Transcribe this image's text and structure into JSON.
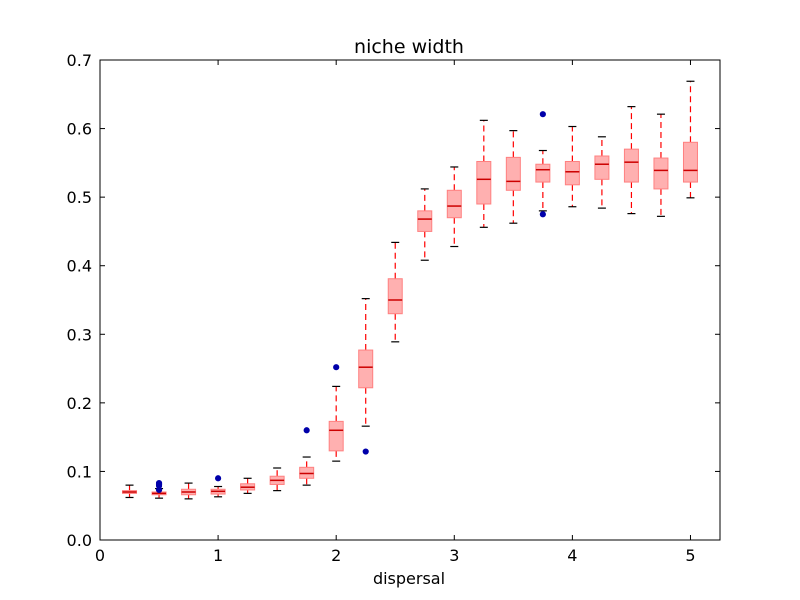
{
  "chart_data": {
    "type": "box",
    "title": "niche width",
    "xlabel": "dispersal",
    "ylabel": "",
    "xlim": [
      0,
      5.25
    ],
    "ylim": [
      0.0,
      0.7
    ],
    "xticks": [
      0,
      1,
      2,
      3,
      4,
      5
    ],
    "xtick_labels": [
      "0",
      "1",
      "2",
      "3",
      "4",
      "5"
    ],
    "yticks": [
      0.0,
      0.1,
      0.2,
      0.3,
      0.4,
      0.5,
      0.6,
      0.7
    ],
    "ytick_labels": [
      "0.0",
      "0.1",
      "0.2",
      "0.3",
      "0.4",
      "0.5",
      "0.6",
      "0.7"
    ],
    "grid": false,
    "colors": {
      "box_fill": "#ffb0b0",
      "box_edge": "#ff8080",
      "median": "#cc0000",
      "whisker": "#ff0000",
      "cap": "#000000",
      "outlier": "#0000aa"
    },
    "boxes": [
      {
        "x": 0.25,
        "whislo": 0.062,
        "q1": 0.068,
        "med": 0.07,
        "q3": 0.072,
        "whishi": 0.08,
        "fliers": []
      },
      {
        "x": 0.5,
        "whislo": 0.061,
        "q1": 0.066,
        "med": 0.068,
        "q3": 0.07,
        "whishi": 0.075,
        "fliers": [
          0.079,
          0.081,
          0.083,
          0.073
        ]
      },
      {
        "x": 0.75,
        "whislo": 0.06,
        "q1": 0.066,
        "med": 0.07,
        "q3": 0.074,
        "whishi": 0.083,
        "fliers": []
      },
      {
        "x": 1.0,
        "whislo": 0.063,
        "q1": 0.067,
        "med": 0.071,
        "q3": 0.074,
        "whishi": 0.078,
        "fliers": [
          0.09
        ]
      },
      {
        "x": 1.25,
        "whislo": 0.068,
        "q1": 0.073,
        "med": 0.077,
        "q3": 0.082,
        "whishi": 0.09,
        "fliers": []
      },
      {
        "x": 1.5,
        "whislo": 0.072,
        "q1": 0.081,
        "med": 0.087,
        "q3": 0.093,
        "whishi": 0.105,
        "fliers": []
      },
      {
        "x": 1.75,
        "whislo": 0.08,
        "q1": 0.09,
        "med": 0.097,
        "q3": 0.106,
        "whishi": 0.121,
        "fliers": [
          0.16
        ]
      },
      {
        "x": 2.0,
        "whislo": 0.115,
        "q1": 0.13,
        "med": 0.16,
        "q3": 0.173,
        "whishi": 0.224,
        "fliers": [
          0.252
        ]
      },
      {
        "x": 2.25,
        "whislo": 0.166,
        "q1": 0.222,
        "med": 0.252,
        "q3": 0.277,
        "whishi": 0.352,
        "fliers": [
          0.129
        ]
      },
      {
        "x": 2.5,
        "whislo": 0.289,
        "q1": 0.33,
        "med": 0.35,
        "q3": 0.381,
        "whishi": 0.434,
        "fliers": []
      },
      {
        "x": 2.75,
        "whislo": 0.408,
        "q1": 0.45,
        "med": 0.468,
        "q3": 0.48,
        "whishi": 0.512,
        "fliers": []
      },
      {
        "x": 3.0,
        "whislo": 0.428,
        "q1": 0.47,
        "med": 0.487,
        "q3": 0.51,
        "whishi": 0.544,
        "fliers": []
      },
      {
        "x": 3.25,
        "whislo": 0.456,
        "q1": 0.49,
        "med": 0.526,
        "q3": 0.552,
        "whishi": 0.612,
        "fliers": []
      },
      {
        "x": 3.5,
        "whislo": 0.462,
        "q1": 0.51,
        "med": 0.523,
        "q3": 0.558,
        "whishi": 0.597,
        "fliers": []
      },
      {
        "x": 3.75,
        "whislo": 0.48,
        "q1": 0.522,
        "med": 0.54,
        "q3": 0.548,
        "whishi": 0.568,
        "fliers": [
          0.621,
          0.475
        ]
      },
      {
        "x": 4.0,
        "whislo": 0.486,
        "q1": 0.518,
        "med": 0.537,
        "q3": 0.552,
        "whishi": 0.603,
        "fliers": []
      },
      {
        "x": 4.25,
        "whislo": 0.484,
        "q1": 0.526,
        "med": 0.548,
        "q3": 0.56,
        "whishi": 0.588,
        "fliers": []
      },
      {
        "x": 4.5,
        "whislo": 0.476,
        "q1": 0.522,
        "med": 0.551,
        "q3": 0.57,
        "whishi": 0.632,
        "fliers": []
      },
      {
        "x": 4.75,
        "whislo": 0.472,
        "q1": 0.512,
        "med": 0.539,
        "q3": 0.557,
        "whishi": 0.621,
        "fliers": []
      },
      {
        "x": 5.0,
        "whislo": 0.499,
        "q1": 0.522,
        "med": 0.539,
        "q3": 0.58,
        "whishi": 0.669,
        "fliers": []
      }
    ]
  }
}
